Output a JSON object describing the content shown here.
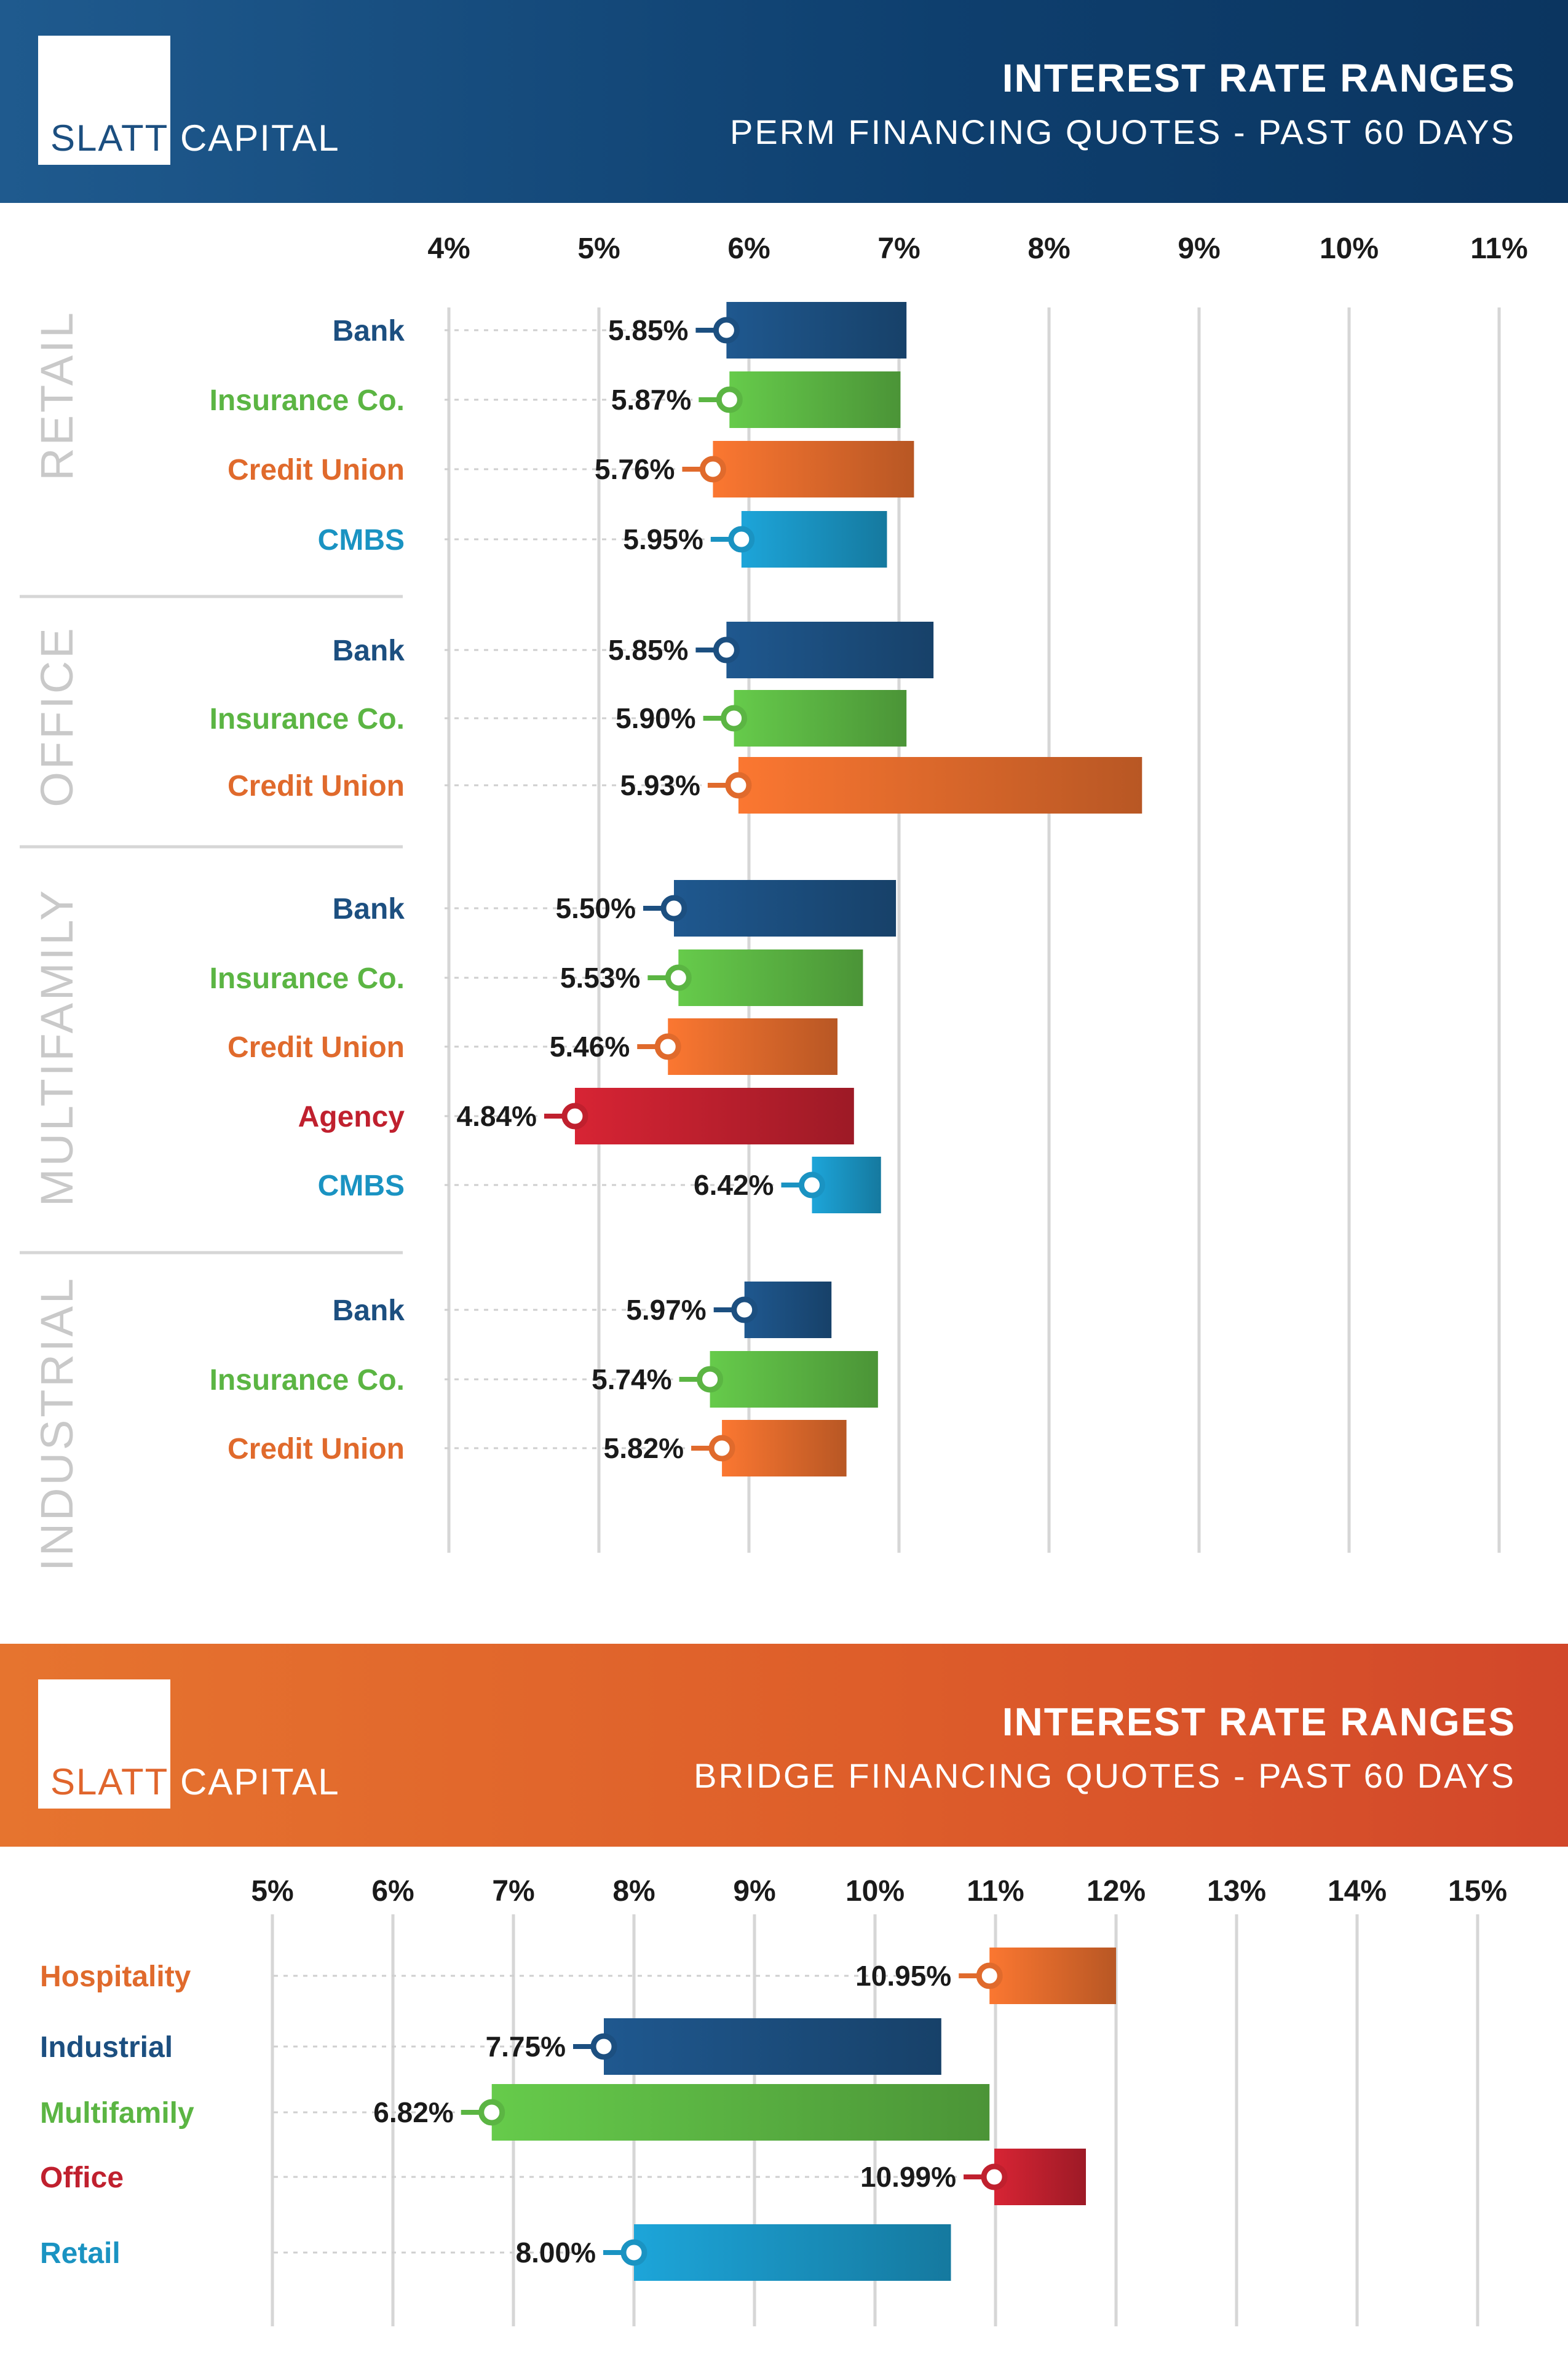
{
  "colors": {
    "bank": "#1c4f80",
    "insurance": "#5bb543",
    "credit_union": "#e06a2c",
    "cmbs": "#1a93c2",
    "agency": "#c0202e",
    "section_label": "#c9c9c9",
    "grid": "#d6d6d6"
  },
  "perm": {
    "logo": {
      "slatt": "SLATT",
      "capital": "CAPITAL"
    },
    "title": "INTEREST RATE RANGES",
    "subtitle": "PERM FINANCING QUOTES - PAST 60 DAYS"
  },
  "bridge": {
    "logo": {
      "slatt": "SLATT",
      "capital": "CAPITAL"
    },
    "title": "INTEREST RATE RANGES",
    "subtitle": "BRIDGE FINANCING QUOTES - PAST 60 DAYS"
  },
  "chart_data": [
    {
      "type": "bar",
      "subtype": "floating-range",
      "title": "INTEREST RATE RANGES",
      "subtitle": "PERM FINANCING QUOTES - PAST 60 DAYS",
      "x_ticks": [
        "4%",
        "5%",
        "6%",
        "7%",
        "8%",
        "9%",
        "10%",
        "11%"
      ],
      "xlim": [
        4,
        11
      ],
      "grid": true,
      "groups": [
        {
          "name": "RETAIL",
          "rows": [
            {
              "label": "Bank",
              "key": "bank",
              "low": 5.85,
              "high": 7.05,
              "low_label": "5.85%"
            },
            {
              "label": "Insurance Co.",
              "key": "insurance",
              "low": 5.87,
              "high": 7.01,
              "low_label": "5.87%"
            },
            {
              "label": "Credit Union",
              "key": "credit_union",
              "low": 5.76,
              "high": 7.1,
              "low_label": "5.76%"
            },
            {
              "label": "CMBS",
              "key": "cmbs",
              "low": 5.95,
              "high": 6.92,
              "low_label": "5.95%"
            }
          ]
        },
        {
          "name": "OFFICE",
          "rows": [
            {
              "label": "Bank",
              "key": "bank",
              "low": 5.85,
              "high": 7.23,
              "low_label": "5.85%"
            },
            {
              "label": "Insurance Co.",
              "key": "insurance",
              "low": 5.9,
              "high": 7.05,
              "low_label": "5.90%"
            },
            {
              "label": "Credit Union",
              "key": "credit_union",
              "low": 5.93,
              "high": 8.62,
              "low_label": "5.93%"
            }
          ]
        },
        {
          "name": "MULTIFAMILY",
          "rows": [
            {
              "label": "Bank",
              "key": "bank",
              "low": 5.5,
              "high": 6.98,
              "low_label": "5.50%"
            },
            {
              "label": "Insurance Co.",
              "key": "insurance",
              "low": 5.53,
              "high": 6.76,
              "low_label": "5.53%"
            },
            {
              "label": "Credit Union",
              "key": "credit_union",
              "low": 5.46,
              "high": 6.59,
              "low_label": "5.46%"
            },
            {
              "label": "Agency",
              "key": "agency",
              "low": 4.84,
              "high": 6.7,
              "low_label": "4.84%"
            },
            {
              "label": "CMBS",
              "key": "cmbs",
              "low": 6.42,
              "high": 6.88,
              "low_label": "6.42%"
            }
          ]
        },
        {
          "name": "INDUSTRIAL",
          "rows": [
            {
              "label": "Bank",
              "key": "bank",
              "low": 5.97,
              "high": 6.55,
              "low_label": "5.97%"
            },
            {
              "label": "Insurance Co.",
              "key": "insurance",
              "low": 5.74,
              "high": 6.86,
              "low_label": "5.74%"
            },
            {
              "label": "Credit Union",
              "key": "credit_union",
              "low": 5.82,
              "high": 6.65,
              "low_label": "5.82%"
            }
          ]
        }
      ]
    },
    {
      "type": "bar",
      "subtype": "floating-range",
      "title": "INTEREST RATE RANGES",
      "subtitle": "BRIDGE FINANCING QUOTES - PAST 60 DAYS",
      "x_ticks": [
        "5%",
        "6%",
        "7%",
        "8%",
        "9%",
        "10%",
        "11%",
        "12%",
        "13%",
        "14%",
        "15%"
      ],
      "xlim": [
        5,
        15
      ],
      "grid": true,
      "rows": [
        {
          "label": "Hospitality",
          "key": "credit_union",
          "low": 10.95,
          "high": 12.0,
          "low_label": "10.95%"
        },
        {
          "label": "Industrial",
          "key": "bank",
          "low": 7.75,
          "high": 10.55,
          "low_label": "7.75%"
        },
        {
          "label": "Multifamily",
          "key": "insurance",
          "low": 6.82,
          "high": 10.95,
          "low_label": "6.82%"
        },
        {
          "label": "Office",
          "key": "agency",
          "low": 10.99,
          "high": 11.75,
          "low_label": "10.99%"
        },
        {
          "label": "Retail",
          "key": "cmbs",
          "low": 8.0,
          "high": 10.63,
          "low_label": "8.00%"
        }
      ]
    }
  ]
}
